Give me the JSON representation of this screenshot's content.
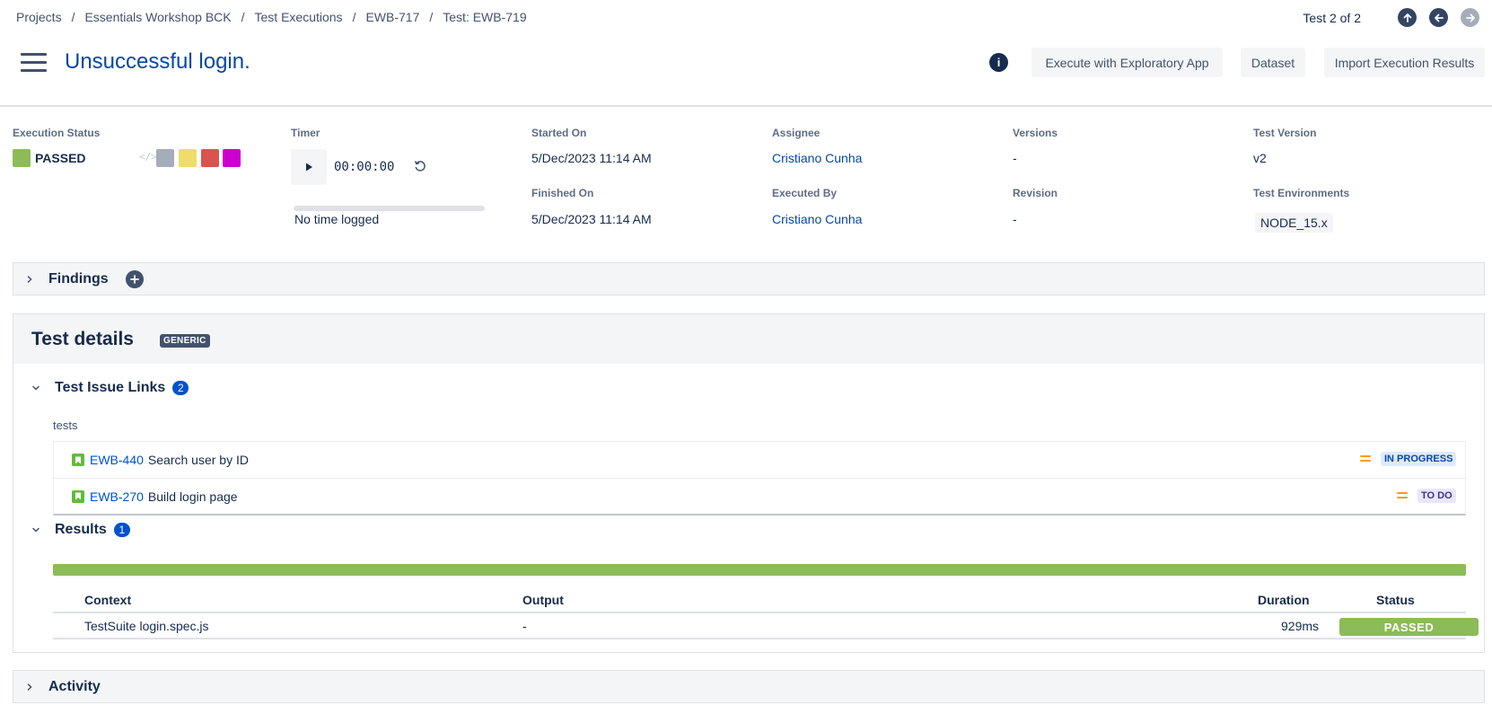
{
  "breadcrumb": [
    "Projects",
    "Essentials Workshop BCK",
    "Test Executions",
    "EWB-717",
    "Test: EWB-719"
  ],
  "pager": {
    "text": "Test 2 of 2"
  },
  "title": "Unsuccessful login.",
  "toolbar": {
    "info_label": "i",
    "exploratory_label": "Execute with Exploratory App",
    "dataset_label": "Dataset",
    "import_label": "Import Execution Results"
  },
  "execution": {
    "status_label": "Execution Status",
    "status_value": "PASSED",
    "status_color": "#8bbc58",
    "status_options_colors": [
      "#a5adba",
      "#f0dc6a",
      "#d9534f",
      "#cc00cc"
    ],
    "code_icon_glyph": "</>",
    "timer_label": "Timer",
    "timer_value": "00:00:00",
    "time_logged": "No time logged",
    "started_label": "Started On",
    "started_value": "5/Dec/2023 11:14 AM",
    "finished_label": "Finished On",
    "finished_value": "5/Dec/2023 11:14 AM",
    "assignee_label": "Assignee",
    "assignee_value": "Cristiano Cunha",
    "executed_by_label": "Executed By",
    "executed_by_value": "Cristiano Cunha",
    "versions_label": "Versions",
    "versions_value": "-",
    "revision_label": "Revision",
    "revision_value": "-",
    "test_version_label": "Test Version",
    "test_version_value": "v2",
    "environments_label": "Test Environments",
    "environments_value": "NODE_15.x"
  },
  "findings": {
    "title": "Findings"
  },
  "test_details": {
    "title": "Test details",
    "badge": "GENERIC",
    "issue_links": {
      "title": "Test Issue Links",
      "count": "2",
      "group_label": "tests",
      "rows": [
        {
          "key": "EWB-440",
          "summary": "Search user by ID",
          "status": "IN PROGRESS"
        },
        {
          "key": "EWB-270",
          "summary": "Build login page",
          "status": "TO DO"
        }
      ]
    },
    "results": {
      "title": "Results",
      "count": "1",
      "columns": {
        "context": "Context",
        "output": "Output",
        "duration": "Duration",
        "status": "Status"
      },
      "rows": [
        {
          "context": "TestSuite login.spec.js",
          "output": "-",
          "duration": "929ms",
          "status": "PASSED"
        }
      ]
    }
  },
  "activity": {
    "title": "Activity"
  }
}
